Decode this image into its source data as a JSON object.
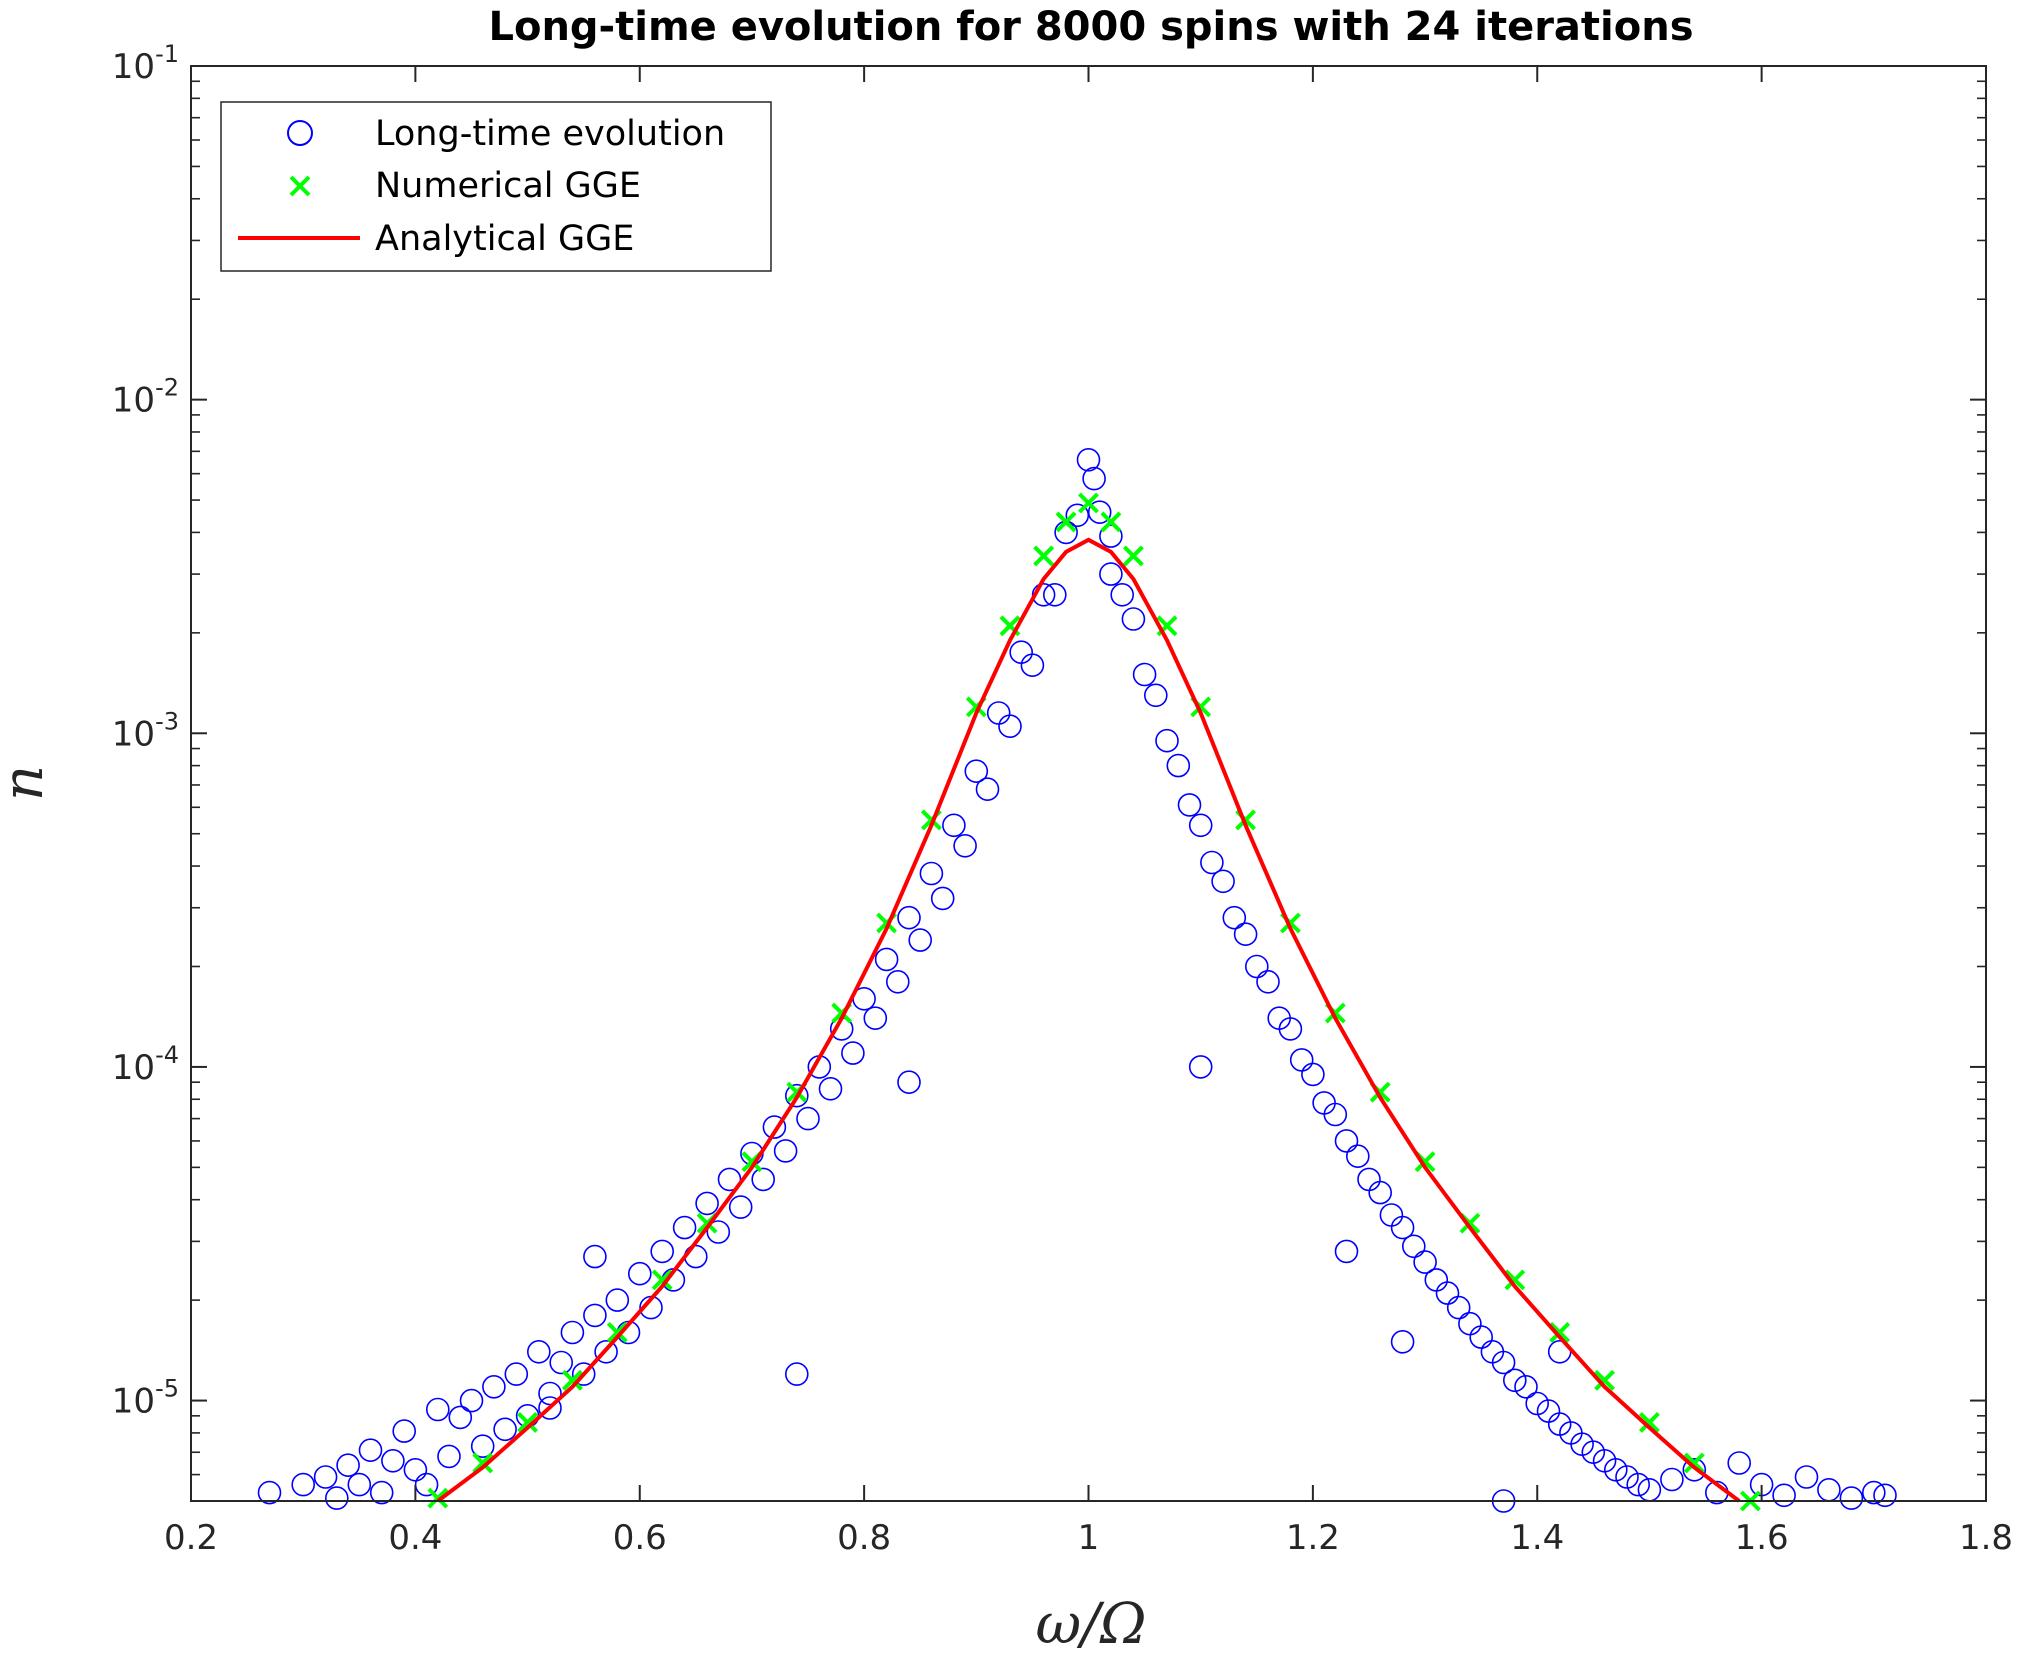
{
  "chart_data": {
    "type": "scatter",
    "title": "Long-time evolution for 8000 spins with 24 iterations",
    "xlabel": "ω/Ω",
    "ylabel": "n",
    "xlim": [
      0.2,
      1.8
    ],
    "ylim": [
      5e-06,
      0.1
    ],
    "yscale": "log",
    "grid": false,
    "legend_position": "top-left",
    "x_ticks": [
      "0.2",
      "0.4",
      "0.6",
      "0.8",
      "1",
      "1.2",
      "1.4",
      "1.6",
      "1.8"
    ],
    "y_ticks": [
      {
        "base": "10",
        "exp": "-5",
        "value": 1e-05
      },
      {
        "base": "10",
        "exp": "-4",
        "value": 0.0001
      },
      {
        "base": "10",
        "exp": "-3",
        "value": 0.001
      },
      {
        "base": "10",
        "exp": "-2",
        "value": 0.01
      },
      {
        "base": "10",
        "exp": "-1",
        "value": 0.1
      }
    ],
    "series": [
      {
        "name": "Long-time evolution",
        "marker": "open-circle",
        "color": "#0000ff",
        "points": [
          [
            0.27,
            5.3e-06
          ],
          [
            0.3,
            5.6e-06
          ],
          [
            0.32,
            5.9e-06
          ],
          [
            0.33,
            5.1e-06
          ],
          [
            0.34,
            6.4e-06
          ],
          [
            0.35,
            5.6e-06
          ],
          [
            0.36,
            7.1e-06
          ],
          [
            0.37,
            5.3e-06
          ],
          [
            0.38,
            6.6e-06
          ],
          [
            0.39,
            8.1e-06
          ],
          [
            0.4,
            6.2e-06
          ],
          [
            0.41,
            5.6e-06
          ],
          [
            0.42,
            9.4e-06
          ],
          [
            0.43,
            6.8e-06
          ],
          [
            0.44,
            8.9e-06
          ],
          [
            0.45,
            1e-05
          ],
          [
            0.46,
            7.3e-06
          ],
          [
            0.47,
            1.1e-05
          ],
          [
            0.48,
            8.2e-06
          ],
          [
            0.49,
            1.2e-05
          ],
          [
            0.5,
            9e-06
          ],
          [
            0.51,
            1.4e-05
          ],
          [
            0.52,
            1.05e-05
          ],
          [
            0.53,
            1.3e-05
          ],
          [
            0.54,
            1.6e-05
          ],
          [
            0.55,
            1.2e-05
          ],
          [
            0.56,
            1.8e-05
          ],
          [
            0.57,
            1.4e-05
          ],
          [
            0.58,
            2e-05
          ],
          [
            0.59,
            1.6e-05
          ],
          [
            0.6,
            2.4e-05
          ],
          [
            0.61,
            1.9e-05
          ],
          [
            0.62,
            2.8e-05
          ],
          [
            0.63,
            2.3e-05
          ],
          [
            0.64,
            3.3e-05
          ],
          [
            0.65,
            2.7e-05
          ],
          [
            0.66,
            3.9e-05
          ],
          [
            0.67,
            3.2e-05
          ],
          [
            0.68,
            4.6e-05
          ],
          [
            0.69,
            3.8e-05
          ],
          [
            0.7,
            5.5e-05
          ],
          [
            0.71,
            4.6e-05
          ],
          [
            0.72,
            6.6e-05
          ],
          [
            0.73,
            5.6e-05
          ],
          [
            0.74,
            8.2e-05
          ],
          [
            0.75,
            7e-05
          ],
          [
            0.76,
            0.0001
          ],
          [
            0.77,
            8.6e-05
          ],
          [
            0.78,
            0.00013
          ],
          [
            0.79,
            0.00011
          ],
          [
            0.8,
            0.00016
          ],
          [
            0.81,
            0.00014
          ],
          [
            0.82,
            0.00021
          ],
          [
            0.83,
            0.00018
          ],
          [
            0.84,
            0.00028
          ],
          [
            0.85,
            0.00024
          ],
          [
            0.86,
            0.00038
          ],
          [
            0.87,
            0.00032
          ],
          [
            0.88,
            0.00053
          ],
          [
            0.89,
            0.00046
          ],
          [
            0.9,
            0.00077
          ],
          [
            0.91,
            0.00068
          ],
          [
            0.92,
            0.00115
          ],
          [
            0.93,
            0.00105
          ],
          [
            0.94,
            0.00175
          ],
          [
            0.95,
            0.0016
          ],
          [
            0.96,
            0.0026
          ],
          [
            0.97,
            0.0026
          ],
          [
            0.98,
            0.004
          ],
          [
            0.99,
            0.0045
          ],
          [
            1.0,
            0.0066
          ],
          [
            1.005,
            0.0058
          ],
          [
            1.01,
            0.0046
          ],
          [
            1.02,
            0.0039
          ],
          [
            1.03,
            0.0026
          ],
          [
            1.04,
            0.0022
          ],
          [
            1.05,
            0.0015
          ],
          [
            1.06,
            0.0013
          ],
          [
            1.07,
            0.00095
          ],
          [
            1.08,
            0.0008
          ],
          [
            1.09,
            0.00061
          ],
          [
            1.1,
            0.00053
          ],
          [
            1.11,
            0.00041
          ],
          [
            1.12,
            0.00036
          ],
          [
            1.13,
            0.00028
          ],
          [
            1.14,
            0.00025
          ],
          [
            1.15,
            0.0002
          ],
          [
            1.16,
            0.00018
          ],
          [
            1.17,
            0.00014
          ],
          [
            1.18,
            0.00013
          ],
          [
            1.19,
            0.000105
          ],
          [
            1.2,
            9.5e-05
          ],
          [
            1.21,
            7.8e-05
          ],
          [
            1.22,
            7.2e-05
          ],
          [
            1.23,
            6e-05
          ],
          [
            1.24,
            5.4e-05
          ],
          [
            1.25,
            4.6e-05
          ],
          [
            1.26,
            4.2e-05
          ],
          [
            1.27,
            3.6e-05
          ],
          [
            1.28,
            3.3e-05
          ],
          [
            1.29,
            2.9e-05
          ],
          [
            1.3,
            2.6e-05
          ],
          [
            1.31,
            2.3e-05
          ],
          [
            1.32,
            2.1e-05
          ],
          [
            1.33,
            1.9e-05
          ],
          [
            1.34,
            1.7e-05
          ],
          [
            1.35,
            1.55e-05
          ],
          [
            1.36,
            1.4e-05
          ],
          [
            1.37,
            1.3e-05
          ],
          [
            1.38,
            1.15e-05
          ],
          [
            1.39,
            1.1e-05
          ],
          [
            1.4,
            9.8e-06
          ],
          [
            1.41,
            9.3e-06
          ],
          [
            1.42,
            8.5e-06
          ],
          [
            1.43,
            8e-06
          ],
          [
            1.44,
            7.4e-06
          ],
          [
            1.45,
            7e-06
          ],
          [
            1.46,
            6.6e-06
          ],
          [
            1.47,
            6.2e-06
          ],
          [
            1.48,
            5.9e-06
          ],
          [
            1.49,
            5.6e-06
          ],
          [
            1.5,
            5.4e-06
          ],
          [
            1.52,
            5.8e-06
          ],
          [
            1.54,
            6.2e-06
          ],
          [
            1.56,
            5.3e-06
          ],
          [
            1.58,
            6.5e-06
          ],
          [
            1.6,
            5.6e-06
          ],
          [
            1.62,
            5.2e-06
          ],
          [
            1.64,
            5.9e-06
          ],
          [
            1.66,
            5.4e-06
          ],
          [
            1.68,
            5.1e-06
          ],
          [
            1.7,
            5.3e-06
          ],
          [
            1.71,
            5.2e-06
          ],
          [
            0.74,
            1.2e-05
          ],
          [
            0.84,
            9e-05
          ],
          [
            1.02,
            0.003
          ],
          [
            1.1,
            0.0001
          ],
          [
            1.23,
            2.8e-05
          ],
          [
            1.28,
            1.5e-05
          ],
          [
            1.37,
            5e-06
          ],
          [
            1.42,
            1.4e-05
          ],
          [
            0.52,
            9.5e-06
          ],
          [
            0.56,
            2.7e-05
          ]
        ]
      },
      {
        "name": "Numerical GGE",
        "marker": "x",
        "color": "#00ff00",
        "points": [
          [
            0.42,
            5.1e-06
          ],
          [
            0.46,
            6.5e-06
          ],
          [
            0.5,
            8.6e-06
          ],
          [
            0.54,
            1.15e-05
          ],
          [
            0.58,
            1.6e-05
          ],
          [
            0.62,
            2.3e-05
          ],
          [
            0.66,
            3.4e-05
          ],
          [
            0.7,
            5.2e-05
          ],
          [
            0.74,
            8.4e-05
          ],
          [
            0.78,
            0.000145
          ],
          [
            0.82,
            0.00027
          ],
          [
            0.86,
            0.00055
          ],
          [
            0.9,
            0.0012
          ],
          [
            0.93,
            0.0021
          ],
          [
            0.96,
            0.0034
          ],
          [
            0.98,
            0.0043
          ],
          [
            1.0,
            0.0049
          ],
          [
            1.02,
            0.0043
          ],
          [
            1.04,
            0.0034
          ],
          [
            1.07,
            0.0021
          ],
          [
            1.1,
            0.0012
          ],
          [
            1.14,
            0.00055
          ],
          [
            1.18,
            0.00027
          ],
          [
            1.22,
            0.000145
          ],
          [
            1.26,
            8.4e-05
          ],
          [
            1.3,
            5.2e-05
          ],
          [
            1.34,
            3.4e-05
          ],
          [
            1.38,
            2.3e-05
          ],
          [
            1.42,
            1.6e-05
          ],
          [
            1.46,
            1.15e-05
          ],
          [
            1.5,
            8.6e-06
          ],
          [
            1.54,
            6.5e-06
          ],
          [
            1.59,
            5e-06
          ]
        ]
      },
      {
        "name": "Analytical GGE",
        "marker": "line",
        "color": "#ff0000",
        "points": [
          [
            0.42,
            5e-06
          ],
          [
            0.46,
            6.3e-06
          ],
          [
            0.5,
            8.3e-06
          ],
          [
            0.54,
            1.1e-05
          ],
          [
            0.58,
            1.55e-05
          ],
          [
            0.62,
            2.2e-05
          ],
          [
            0.66,
            3.3e-05
          ],
          [
            0.7,
            5e-05
          ],
          [
            0.74,
            8.1e-05
          ],
          [
            0.78,
            0.00014
          ],
          [
            0.82,
            0.00026
          ],
          [
            0.86,
            0.00053
          ],
          [
            0.9,
            0.00115
          ],
          [
            0.93,
            0.0019
          ],
          [
            0.96,
            0.0029
          ],
          [
            0.98,
            0.0035
          ],
          [
            1.0,
            0.0038
          ],
          [
            1.02,
            0.0035
          ],
          [
            1.04,
            0.0029
          ],
          [
            1.07,
            0.0019
          ],
          [
            1.1,
            0.00115
          ],
          [
            1.14,
            0.00053
          ],
          [
            1.18,
            0.00026
          ],
          [
            1.22,
            0.00014
          ],
          [
            1.26,
            8.1e-05
          ],
          [
            1.3,
            5e-05
          ],
          [
            1.34,
            3.3e-05
          ],
          [
            1.38,
            2.2e-05
          ],
          [
            1.42,
            1.55e-05
          ],
          [
            1.46,
            1.1e-05
          ],
          [
            1.5,
            8.3e-06
          ],
          [
            1.54,
            6.3e-06
          ],
          [
            1.58,
            5e-06
          ]
        ]
      }
    ]
  }
}
